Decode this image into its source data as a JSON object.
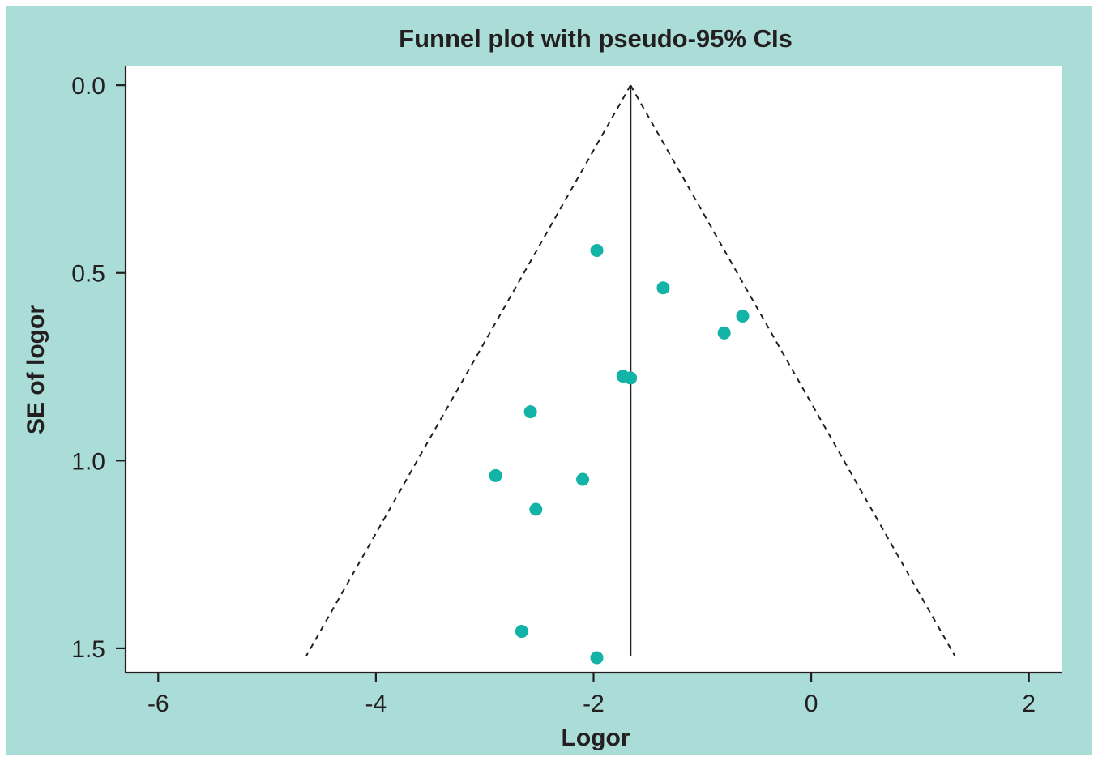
{
  "colors": {
    "frame_background": "#abddd8",
    "plot_background": "#ffffff",
    "point_color": "#13b3a7",
    "line_color": "#231f20"
  },
  "chart_data": {
    "type": "scatter",
    "title": "Funnel plot with pseudo-95% CIs",
    "xlabel": "Logor",
    "ylabel": "SE of logor",
    "xlim": [
      -6.3,
      2.3
    ],
    "ylim": [
      1.565,
      -0.05
    ],
    "y_reversed": true,
    "grid": false,
    "x_ticks": [
      -6,
      -4,
      -2,
      0,
      2
    ],
    "y_ticks": [
      0.0,
      0.5,
      1.0,
      1.5
    ],
    "x_tick_labels": [
      "-6",
      "-4",
      "-2",
      "0",
      "2"
    ],
    "y_tick_labels": [
      "0.0",
      "0.5",
      "1.0",
      "1.5"
    ],
    "pooled_estimate": -1.66,
    "funnel_max_se": 1.52,
    "points": [
      {
        "x": -1.97,
        "y": 0.44
      },
      {
        "x": -1.36,
        "y": 0.54
      },
      {
        "x": -0.63,
        "y": 0.615
      },
      {
        "x": -0.8,
        "y": 0.66
      },
      {
        "x": -1.73,
        "y": 0.775
      },
      {
        "x": -1.66,
        "y": 0.78
      },
      {
        "x": -2.58,
        "y": 0.87
      },
      {
        "x": -2.9,
        "y": 1.04
      },
      {
        "x": -2.1,
        "y": 1.05
      },
      {
        "x": -2.53,
        "y": 1.13
      },
      {
        "x": -2.66,
        "y": 1.455
      },
      {
        "x": -1.97,
        "y": 1.525
      }
    ]
  }
}
